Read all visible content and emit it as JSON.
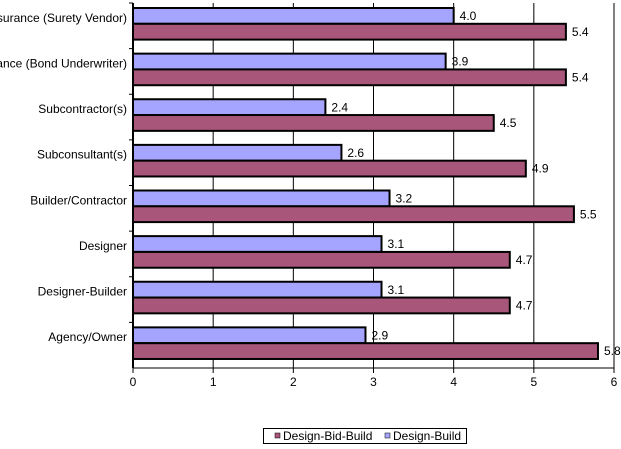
{
  "chart_data": {
    "type": "bar",
    "orientation": "horizontal",
    "categories": [
      "Insurance (Surety Vendor)",
      "Finance (Bond Underwriter)",
      "Subcontractor(s)",
      "Subconsultant(s)",
      "Builder/Contractor",
      "Designer",
      "Designer-Builder",
      "Agency/Owner"
    ],
    "series": [
      {
        "name": "Design-Build",
        "color": "#a5a5ff",
        "values": [
          4.0,
          3.9,
          2.4,
          2.6,
          3.2,
          3.1,
          3.1,
          2.9
        ],
        "labels": [
          "4.0",
          "3.9",
          "2.4",
          "2.6",
          "3.2",
          "3.1",
          "3.1",
          "2.9"
        ]
      },
      {
        "name": "Design-Bid-Build",
        "color": "#a8567a",
        "values": [
          5.4,
          5.4,
          4.5,
          4.9,
          5.5,
          4.7,
          4.7,
          5.8
        ],
        "labels": [
          "5.4",
          "5.4",
          "4.5",
          "4.9",
          "5.5",
          "4.7",
          "4.7",
          "5.8"
        ]
      }
    ],
    "xlim": [
      0,
      6
    ],
    "xticks": [
      "0",
      "1",
      "2",
      "3",
      "4",
      "5",
      "6"
    ],
    "grid": true,
    "legend_position": "bottom",
    "legend": [
      "Design-Bid-Build",
      "Design-Build"
    ]
  }
}
